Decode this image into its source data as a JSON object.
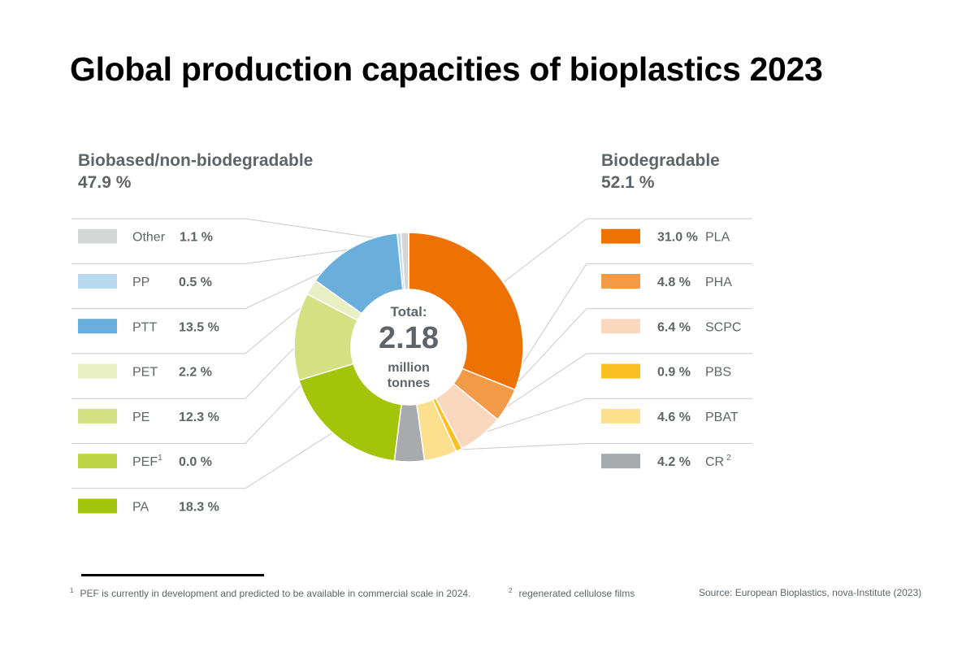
{
  "title": "Global production capacities of bioplastics 2023",
  "groups": {
    "left": {
      "name": "Biobased/non-biodegradable",
      "share": "47.9 %"
    },
    "right": {
      "name": "Biodegradable",
      "share": "52.1 %"
    }
  },
  "center": {
    "label": "Total:",
    "value": "2.18",
    "unit_line1": "million",
    "unit_line2": "tonnes"
  },
  "footnotes": {
    "note1_mark": "1",
    "note1": "PEF is currently in development and predicted to be available in commercial scale in 2024.",
    "note2_mark": "2",
    "note2": "regenerated cellulose films",
    "source": "Source: European Bioplastics, nova-Institute (2023)"
  },
  "chart_data": {
    "type": "pie",
    "title": "Global production capacities of bioplastics 2023",
    "total": 2.18,
    "total_unit": "million tonnes",
    "slices": [
      {
        "name": "PLA",
        "value": 31.0,
        "label": "31.0 %",
        "group": "Biodegradable",
        "color": "#ee7203",
        "sup": ""
      },
      {
        "name": "PHA",
        "value": 4.8,
        "label": "4.8 %",
        "group": "Biodegradable",
        "color": "#f39a46",
        "sup": ""
      },
      {
        "name": "SCPC",
        "value": 6.4,
        "label": "6.4 %",
        "group": "Biodegradable",
        "color": "#fad8c0",
        "sup": ""
      },
      {
        "name": "PBS",
        "value": 0.9,
        "label": "0.9 %",
        "group": "Biodegradable",
        "color": "#fbbf24",
        "sup": ""
      },
      {
        "name": "PBAT",
        "value": 4.6,
        "label": "4.6 %",
        "group": "Biodegradable",
        "color": "#fce08e",
        "sup": ""
      },
      {
        "name": "CR",
        "value": 4.2,
        "label": "4.2 %",
        "group": "Biodegradable",
        "color": "#a8abae",
        "sup": "2"
      },
      {
        "name": "PA",
        "value": 18.3,
        "label": "18.3 %",
        "group": "Biobased/non-biodegradable",
        "color": "#a4c40a",
        "sup": ""
      },
      {
        "name": "PEF",
        "value": 0.0,
        "label": "0.0 %",
        "group": "Biobased/non-biodegradable",
        "color": "#bdd444",
        "sup": "1"
      },
      {
        "name": "PE",
        "value": 12.3,
        "label": "12.3 %",
        "group": "Biobased/non-biodegradable",
        "color": "#d3e183",
        "sup": ""
      },
      {
        "name": "PET",
        "value": 2.2,
        "label": "2.2 %",
        "group": "Biobased/non-biodegradable",
        "color": "#e8f0c3",
        "sup": ""
      },
      {
        "name": "PTT",
        "value": 13.5,
        "label": "13.5 %",
        "group": "Biobased/non-biodegradable",
        "color": "#6aafdc",
        "sup": ""
      },
      {
        "name": "PP",
        "value": 0.5,
        "label": "0.5 %",
        "group": "Biobased/non-biodegradable",
        "color": "#b8d8f0",
        "sup": ""
      },
      {
        "name": "Other",
        "value": 1.1,
        "label": "1.1 %",
        "group": "Biobased/non-biodegradable",
        "color": "#d4d6d6",
        "sup": ""
      }
    ],
    "legend_left_order": [
      "Other",
      "PP",
      "PTT",
      "PET",
      "PE",
      "PEF",
      "PA"
    ],
    "legend_right_order": [
      "PLA",
      "PHA",
      "SCPC",
      "PBS",
      "PBAT",
      "CR"
    ]
  }
}
